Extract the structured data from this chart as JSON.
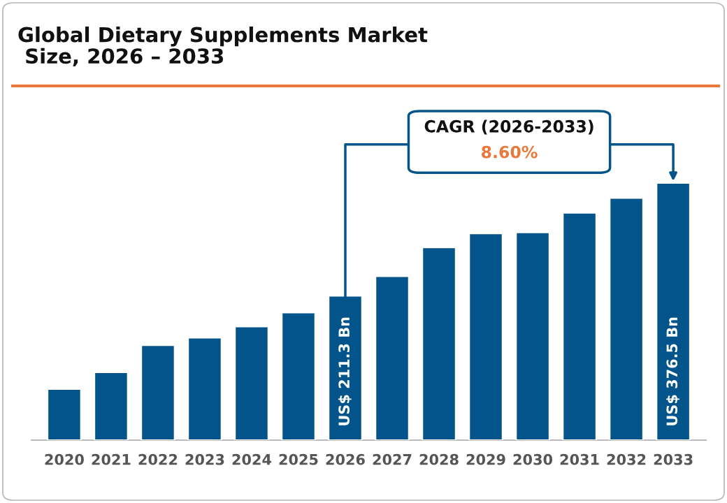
{
  "chart_data": {
    "type": "bar",
    "title": "Global Dietary Supplements Market\n Size, 2026 – 2033",
    "categories": [
      "2020",
      "2021",
      "2022",
      "2023",
      "2024",
      "2025",
      "2026",
      "2027",
      "2028",
      "2029",
      "2030",
      "2031",
      "2032",
      "2033"
    ],
    "values": [
      74.8,
      99.4,
      138.9,
      149.9,
      166.2,
      186.7,
      211.3,
      239.9,
      282.2,
      302.7,
      304.1,
      332.7,
      354.6,
      376.5
    ],
    "tick_labels": "x",
    "value_labels": [
      null,
      null,
      null,
      null,
      null,
      null,
      "US$ 211.3 Bn",
      null,
      null,
      null,
      null,
      null,
      null,
      "US$ 376.5 Bn"
    ],
    "color": "#02548a",
    "grid": false,
    "legend": false,
    "annotations": [
      "CAGR (2026-2033)",
      "8.60%"
    ]
  }
}
